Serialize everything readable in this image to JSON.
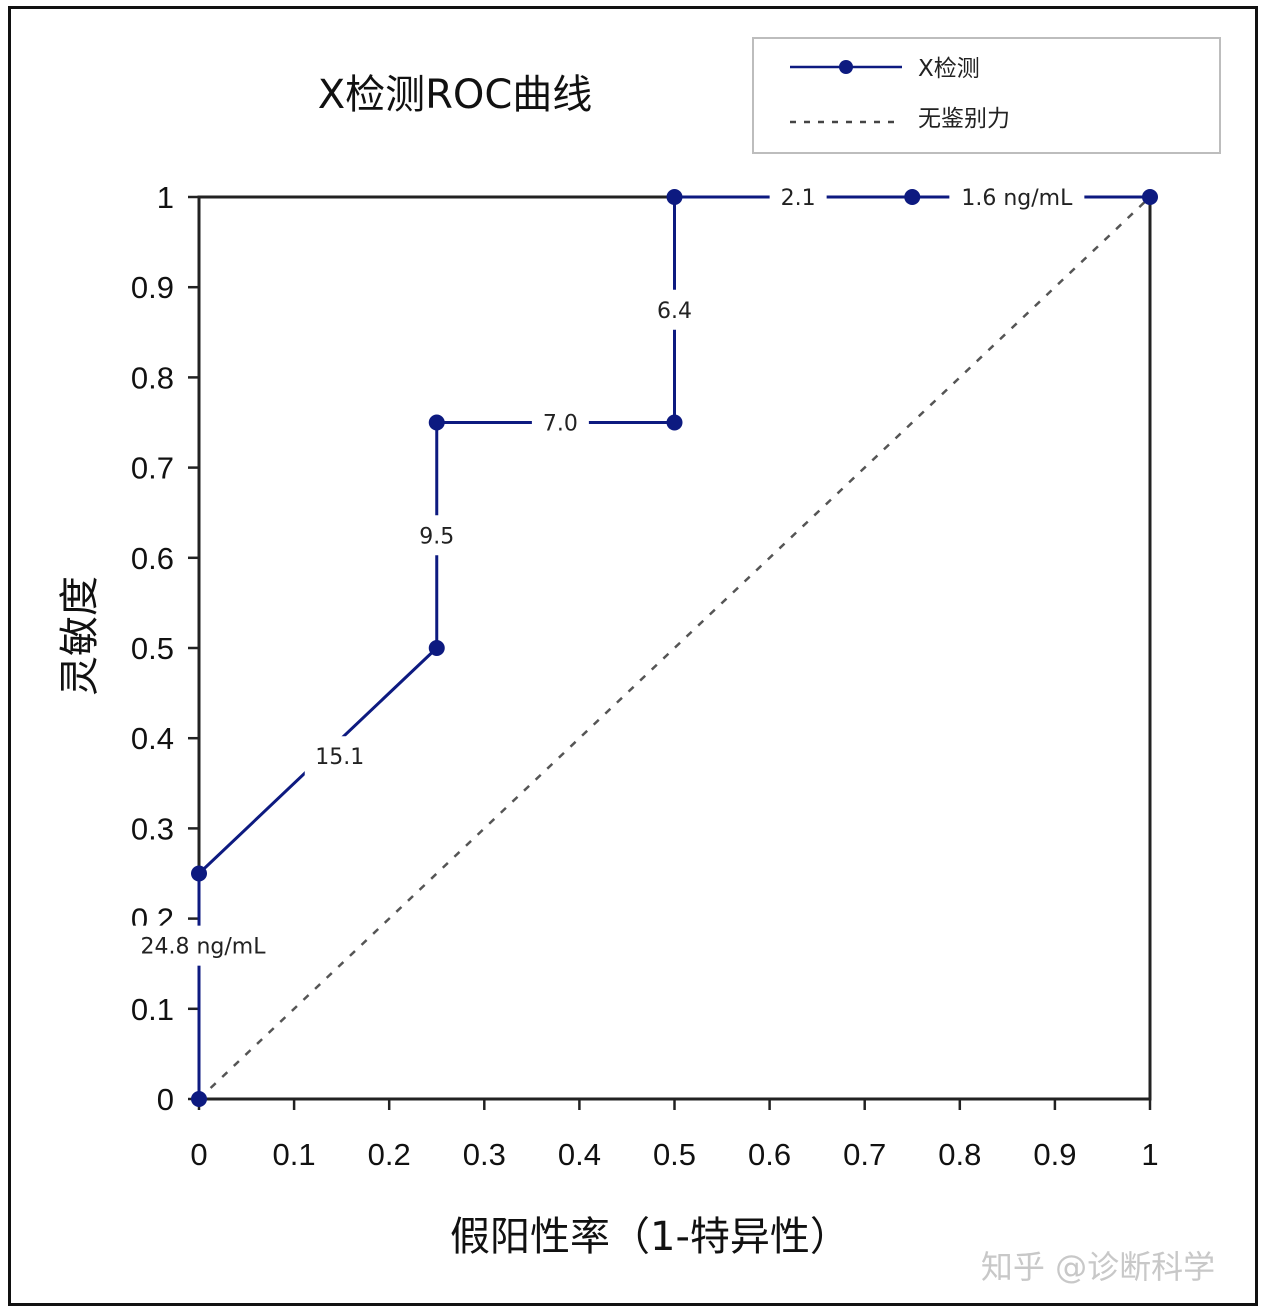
{
  "chart_data": {
    "type": "line",
    "title": "X检测ROC曲线",
    "xlabel": "假阳性率（1-特异性）",
    "ylabel": "灵敏度",
    "xlim": [
      0,
      1
    ],
    "ylim": [
      0,
      1
    ],
    "x_ticks": [
      "0",
      "0.1",
      "0.2",
      "0.3",
      "0.4",
      "0.5",
      "0.6",
      "0.7",
      "0.8",
      "0.9",
      "1"
    ],
    "y_ticks": [
      "0",
      "0.1",
      "0.2",
      "0.3",
      "0.4",
      "0.5",
      "0.6",
      "0.7",
      "0.8",
      "0.9",
      "1"
    ],
    "grid": false,
    "legend_position": "top-right",
    "series": [
      {
        "name": "X检测",
        "style": "solid-markers",
        "color": "#0d1a80",
        "x": [
          0,
          0,
          0.25,
          0.25,
          0.5,
          0.5,
          0.75,
          1
        ],
        "y": [
          0,
          0.25,
          0.5,
          0.75,
          0.75,
          1,
          1,
          1
        ]
      },
      {
        "name": "无鉴别力",
        "style": "dashed",
        "color": "#555555",
        "x": [
          0,
          1
        ],
        "y": [
          0,
          1
        ]
      }
    ],
    "annotations": [
      {
        "text": "24.8 ng/mL",
        "x": 0,
        "y": 0.17
      },
      {
        "text": "15.1",
        "x": 0.148,
        "y": 0.38
      },
      {
        "text": "9.5",
        "x": 0.25,
        "y": 0.625
      },
      {
        "text": "7.0",
        "x": 0.38,
        "y": 0.75
      },
      {
        "text": "6.4",
        "x": 0.5,
        "y": 0.875
      },
      {
        "text": "2.1",
        "x": 0.63,
        "y": 1
      },
      {
        "text": "1.6 ng/mL",
        "x": 0.86,
        "y": 1
      }
    ]
  },
  "watermark": "知乎 @诊断科学"
}
